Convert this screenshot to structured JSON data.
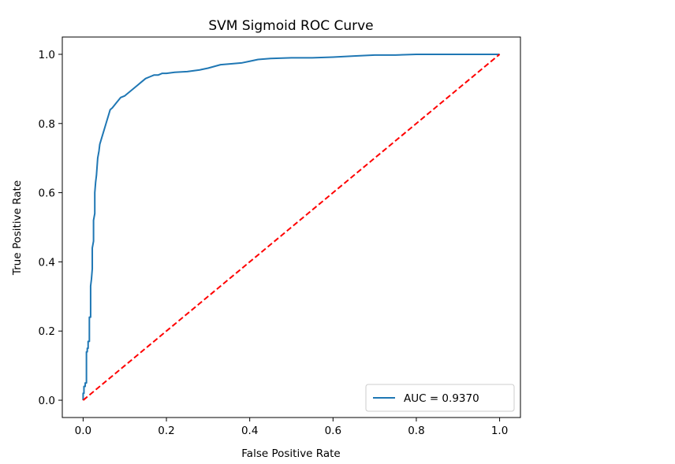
{
  "chart_data": {
    "type": "line",
    "title": "SVM Sigmoid ROC Curve",
    "xlabel": "False Positive Rate",
    "ylabel": "True Positive Rate",
    "xlim": [
      -0.05,
      1.05
    ],
    "ylim": [
      -0.05,
      1.05
    ],
    "x_ticks": [
      0.0,
      0.2,
      0.4,
      0.6,
      0.8,
      1.0
    ],
    "x_tick_labels": [
      "0.0",
      "0.2",
      "0.4",
      "0.6",
      "0.8",
      "1.0"
    ],
    "y_ticks": [
      0.0,
      0.2,
      0.4,
      0.6,
      0.8,
      1.0
    ],
    "y_tick_labels": [
      "0.0",
      "0.2",
      "0.4",
      "0.6",
      "0.8",
      "1.0"
    ],
    "grid": false,
    "legend_position": "lower-right",
    "series": [
      {
        "name": "AUC = 0.9370",
        "color": "#1f77b4",
        "style": "solid",
        "x": [
          0.0,
          0.0,
          0.002,
          0.002,
          0.005,
          0.005,
          0.008,
          0.008,
          0.01,
          0.01,
          0.012,
          0.012,
          0.015,
          0.015,
          0.018,
          0.018,
          0.02,
          0.022,
          0.022,
          0.025,
          0.025,
          0.028,
          0.028,
          0.03,
          0.032,
          0.035,
          0.038,
          0.04,
          0.045,
          0.05,
          0.055,
          0.06,
          0.065,
          0.07,
          0.08,
          0.09,
          0.1,
          0.11,
          0.12,
          0.13,
          0.14,
          0.15,
          0.16,
          0.17,
          0.18,
          0.19,
          0.2,
          0.22,
          0.25,
          0.28,
          0.3,
          0.33,
          0.35,
          0.38,
          0.4,
          0.42,
          0.45,
          0.5,
          0.55,
          0.6,
          0.65,
          0.7,
          0.75,
          0.8,
          0.85,
          0.9,
          0.95,
          1.0
        ],
        "y": [
          0.0,
          0.02,
          0.02,
          0.04,
          0.04,
          0.05,
          0.05,
          0.14,
          0.14,
          0.15,
          0.15,
          0.17,
          0.17,
          0.24,
          0.24,
          0.33,
          0.35,
          0.38,
          0.44,
          0.46,
          0.52,
          0.54,
          0.6,
          0.63,
          0.65,
          0.7,
          0.72,
          0.74,
          0.76,
          0.78,
          0.8,
          0.82,
          0.84,
          0.845,
          0.86,
          0.875,
          0.88,
          0.89,
          0.9,
          0.91,
          0.92,
          0.93,
          0.935,
          0.94,
          0.94,
          0.945,
          0.945,
          0.948,
          0.95,
          0.955,
          0.96,
          0.97,
          0.972,
          0.975,
          0.98,
          0.985,
          0.988,
          0.99,
          0.99,
          0.992,
          0.995,
          0.998,
          0.998,
          1.0,
          1.0,
          1.0,
          1.0,
          1.0
        ]
      },
      {
        "name": "",
        "color": "#ff0000",
        "style": "dashed",
        "x": [
          0.0,
          1.0
        ],
        "y": [
          0.0,
          1.0
        ]
      }
    ]
  }
}
